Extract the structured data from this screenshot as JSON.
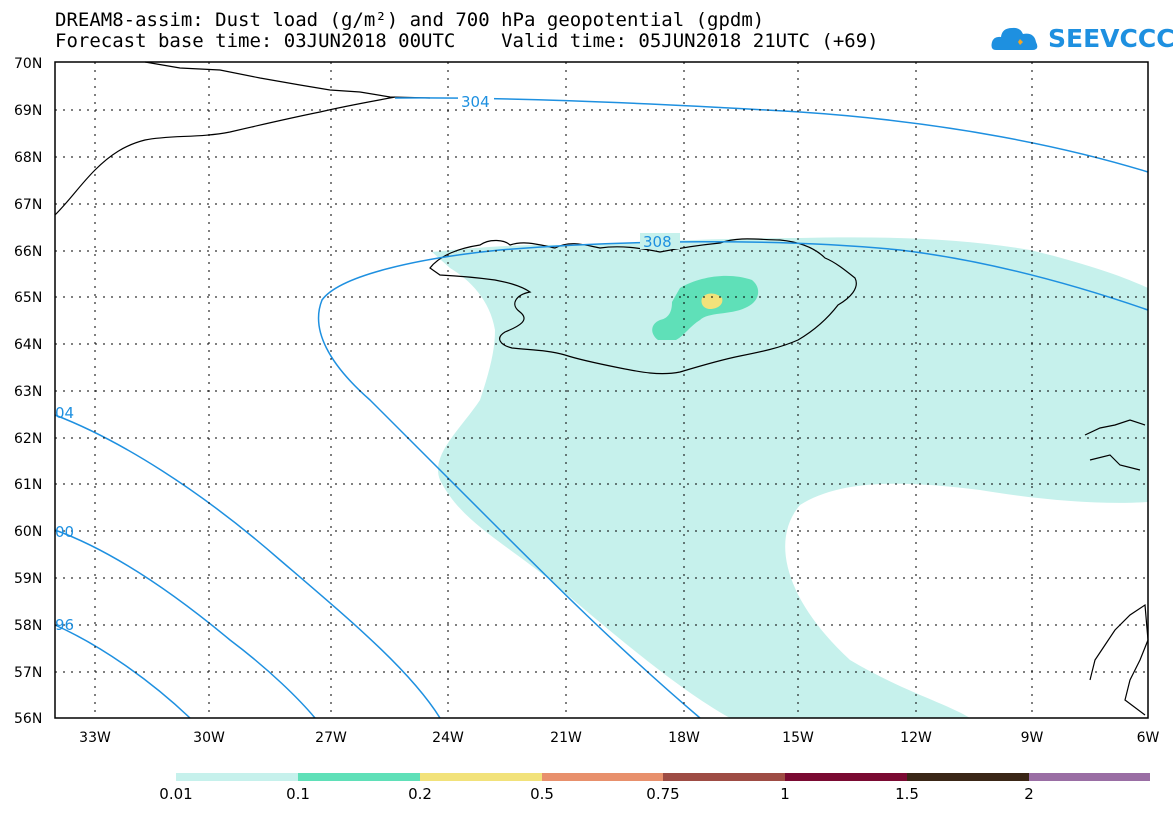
{
  "title": {
    "line1": "DREAM8-assim: Dust load (g/m²) and 700 hPa geopotential (gpdm)",
    "line2": "Forecast base time: 03JUN2018 00UTC    Valid time: 05JUN2018 21UTC (+69)"
  },
  "logo": {
    "text": "SEEVCCC",
    "color": "#1e90e0"
  },
  "map": {
    "lat_labels": [
      "70N",
      "69N",
      "68N",
      "67N",
      "66N",
      "65N",
      "64N",
      "63N",
      "62N",
      "61N",
      "60N",
      "59N",
      "58N",
      "57N",
      "56N"
    ],
    "lon_labels": [
      "33W",
      "30W",
      "27W",
      "24W",
      "21W",
      "18W",
      "15W",
      "12W",
      "9W",
      "6W"
    ],
    "contour_labels": [
      "304",
      "308",
      "04",
      "00",
      "96"
    ],
    "contour_color": "#1e90e0",
    "land_outline_color": "#000000"
  },
  "colorbar": {
    "colors": [
      "#c6f1ec",
      "#5fe0b8",
      "#f2e27a",
      "#e8906c",
      "#9e4c44",
      "#7a0a32",
      "#3a2616",
      "#9a6ea4"
    ],
    "labels": [
      "0.01",
      "0.1",
      "0.2",
      "0.5",
      "0.75",
      "1",
      "1.5",
      "2"
    ]
  }
}
